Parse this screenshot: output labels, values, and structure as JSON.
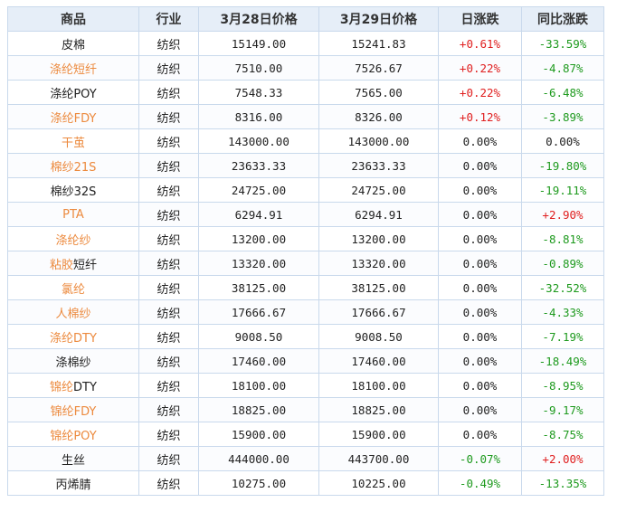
{
  "table": {
    "headers": [
      "商品",
      "行业",
      "3月28日价格",
      "3月29日价格",
      "日涨跌",
      "同比涨跌"
    ],
    "rows": [
      {
        "product": "皮棉",
        "product_style": "plain",
        "industry": "纺织",
        "price_mar28": "15149.00",
        "price_mar29": "15241.83",
        "daily_change": "+0.61%",
        "daily_dir": "up",
        "yoy_change": "-33.59%",
        "yoy_dir": "down"
      },
      {
        "product": "涤纶短纤",
        "product_style": "orange",
        "industry": "纺织",
        "price_mar28": "7510.00",
        "price_mar29": "7526.67",
        "daily_change": "+0.22%",
        "daily_dir": "up",
        "yoy_change": "-4.87%",
        "yoy_dir": "down"
      },
      {
        "product": "涤纶POY",
        "product_style": "plain",
        "industry": "纺织",
        "price_mar28": "7548.33",
        "price_mar29": "7565.00",
        "daily_change": "+0.22%",
        "daily_dir": "up",
        "yoy_change": "-6.48%",
        "yoy_dir": "down"
      },
      {
        "product": "涤纶FDY",
        "product_style": "orange",
        "industry": "纺织",
        "price_mar28": "8316.00",
        "price_mar29": "8326.00",
        "daily_change": "+0.12%",
        "daily_dir": "up",
        "yoy_change": "-3.89%",
        "yoy_dir": "down"
      },
      {
        "product": "干茧",
        "product_style": "orange",
        "industry": "纺织",
        "price_mar28": "143000.00",
        "price_mar29": "143000.00",
        "daily_change": "0.00%",
        "daily_dir": "flat",
        "yoy_change": "0.00%",
        "yoy_dir": "flat"
      },
      {
        "product": "棉纱21S",
        "product_style": "orange",
        "industry": "纺织",
        "price_mar28": "23633.33",
        "price_mar29": "23633.33",
        "daily_change": "0.00%",
        "daily_dir": "flat",
        "yoy_change": "-19.80%",
        "yoy_dir": "down"
      },
      {
        "product": "棉纱32S",
        "product_style": "plain",
        "industry": "纺织",
        "price_mar28": "24725.00",
        "price_mar29": "24725.00",
        "daily_change": "0.00%",
        "daily_dir": "flat",
        "yoy_change": "-19.11%",
        "yoy_dir": "down"
      },
      {
        "product": "PTA",
        "product_style": "orange",
        "industry": "纺织",
        "price_mar28": "6294.91",
        "price_mar29": "6294.91",
        "daily_change": "0.00%",
        "daily_dir": "flat",
        "yoy_change": "+2.90%",
        "yoy_dir": "up"
      },
      {
        "product": "涤纶纱",
        "product_style": "orange",
        "industry": "纺织",
        "price_mar28": "13200.00",
        "price_mar29": "13200.00",
        "daily_change": "0.00%",
        "daily_dir": "flat",
        "yoy_change": "-8.81%",
        "yoy_dir": "down"
      },
      {
        "product": "粘胶短纤",
        "product_style": "orange-partial",
        "product_orange": "粘胶",
        "product_rest": "短纤",
        "industry": "纺织",
        "price_mar28": "13320.00",
        "price_mar29": "13320.00",
        "daily_change": "0.00%",
        "daily_dir": "flat",
        "yoy_change": "-0.89%",
        "yoy_dir": "down"
      },
      {
        "product": "氯纶",
        "product_style": "orange",
        "industry": "纺织",
        "price_mar28": "38125.00",
        "price_mar29": "38125.00",
        "daily_change": "0.00%",
        "daily_dir": "flat",
        "yoy_change": "-32.52%",
        "yoy_dir": "down"
      },
      {
        "product": "人棉纱",
        "product_style": "orange",
        "industry": "纺织",
        "price_mar28": "17666.67",
        "price_mar29": "17666.67",
        "daily_change": "0.00%",
        "daily_dir": "flat",
        "yoy_change": "-4.33%",
        "yoy_dir": "down"
      },
      {
        "product": "涤纶DTY",
        "product_style": "orange",
        "industry": "纺织",
        "price_mar28": "9008.50",
        "price_mar29": "9008.50",
        "daily_change": "0.00%",
        "daily_dir": "flat",
        "yoy_change": "-7.19%",
        "yoy_dir": "down"
      },
      {
        "product": "涤棉纱",
        "product_style": "plain",
        "industry": "纺织",
        "price_mar28": "17460.00",
        "price_mar29": "17460.00",
        "daily_change": "0.00%",
        "daily_dir": "flat",
        "yoy_change": "-18.49%",
        "yoy_dir": "down"
      },
      {
        "product": "锦纶DTY",
        "product_style": "orange-partial",
        "product_orange": "锦纶",
        "product_rest": "DTY",
        "industry": "纺织",
        "price_mar28": "18100.00",
        "price_mar29": "18100.00",
        "daily_change": "0.00%",
        "daily_dir": "flat",
        "yoy_change": "-8.95%",
        "yoy_dir": "down"
      },
      {
        "product": "锦纶FDY",
        "product_style": "orange",
        "industry": "纺织",
        "price_mar28": "18825.00",
        "price_mar29": "18825.00",
        "daily_change": "0.00%",
        "daily_dir": "flat",
        "yoy_change": "-9.17%",
        "yoy_dir": "down"
      },
      {
        "product": "锦纶POY",
        "product_style": "orange",
        "industry": "纺织",
        "price_mar28": "15900.00",
        "price_mar29": "15900.00",
        "daily_change": "0.00%",
        "daily_dir": "flat",
        "yoy_change": "-8.75%",
        "yoy_dir": "down"
      },
      {
        "product": "生丝",
        "product_style": "plain",
        "industry": "纺织",
        "price_mar28": "444000.00",
        "price_mar29": "443700.00",
        "daily_change": "-0.07%",
        "daily_dir": "down",
        "yoy_change": "+2.00%",
        "yoy_dir": "up"
      },
      {
        "product": "丙烯腈",
        "product_style": "plain",
        "industry": "纺织",
        "price_mar28": "10275.00",
        "price_mar29": "10225.00",
        "daily_change": "-0.49%",
        "daily_dir": "down",
        "yoy_change": "-13.35%",
        "yoy_dir": "down"
      }
    ]
  },
  "colors": {
    "product_link": "#ec8a3e",
    "up": "#e02020",
    "down": "#1e9a1e",
    "header_bg": "#e6eef8",
    "border": "#c9d9ec"
  }
}
